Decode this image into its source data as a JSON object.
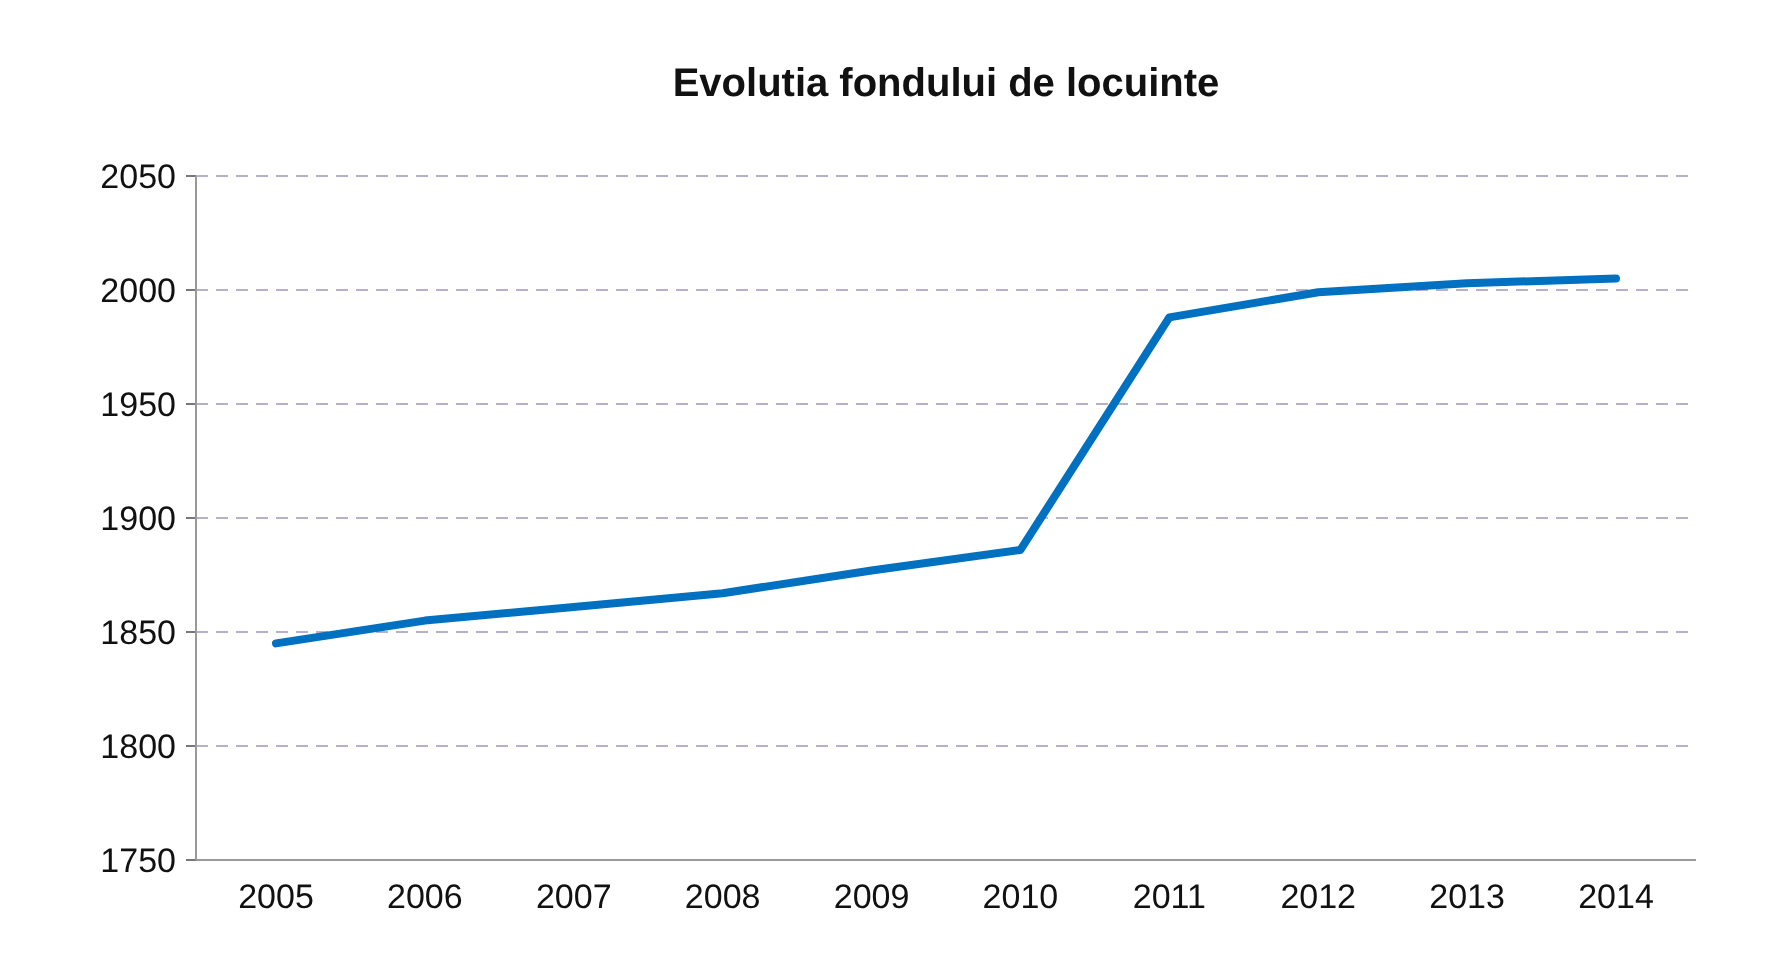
{
  "chart_data": {
    "type": "line",
    "title": "Evolutia fondului de locuinte",
    "categories": [
      "2005",
      "2006",
      "2007",
      "2008",
      "2009",
      "2010",
      "2011",
      "2012",
      "2013",
      "2014"
    ],
    "series": [
      {
        "color": "#0070c0",
        "values": [
          1845,
          1855,
          1861,
          1867,
          1877,
          1886,
          1988,
          1999,
          2003,
          2005
        ]
      }
    ],
    "ylim": [
      1750,
      2050
    ],
    "yticks": [
      1750,
      1800,
      1850,
      1900,
      1950,
      2000,
      2050
    ],
    "grid": "y",
    "marker": "none",
    "line_style": "solid"
  }
}
